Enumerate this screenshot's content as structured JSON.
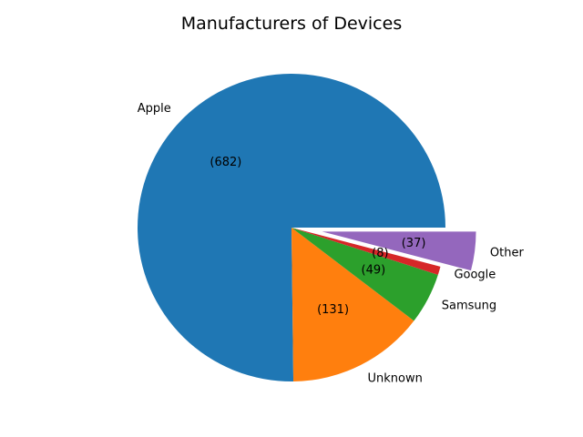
{
  "chart_data": {
    "type": "pie",
    "title": "Manufacturers of Devices",
    "slices": [
      {
        "label": "Apple",
        "value": 682,
        "value_label": "(682)",
        "color": "#1f77b4",
        "explode": false
      },
      {
        "label": "Unknown",
        "value": 131,
        "value_label": "(131)",
        "color": "#ff7f0e",
        "explode": false
      },
      {
        "label": "Samsung",
        "value": 49,
        "value_label": "(49)",
        "color": "#2ca02c",
        "explode": false
      },
      {
        "label": "Google",
        "value": 8,
        "value_label": "(8)",
        "color": "#d62728",
        "explode": false
      },
      {
        "label": "Other",
        "value": 37,
        "value_label": "(37)",
        "color": "#9467bd",
        "explode": true
      }
    ]
  }
}
